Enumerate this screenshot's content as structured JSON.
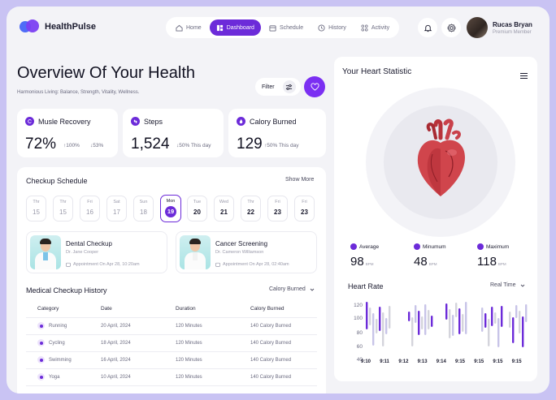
{
  "header": {
    "brand": "HealthPulse",
    "nav": [
      {
        "label": "Home",
        "icon": "home-icon",
        "active": false
      },
      {
        "label": "Dashboard",
        "icon": "grid-icon",
        "active": true
      },
      {
        "label": "Schedule",
        "icon": "calendar-icon",
        "active": false
      },
      {
        "label": "History",
        "icon": "clock-icon",
        "active": false
      },
      {
        "label": "Activity",
        "icon": "activity-icon",
        "active": false
      }
    ],
    "user": {
      "name": "Rucas Bryan",
      "role": "Premium Member"
    }
  },
  "overview": {
    "title": "Overview Of Your Health",
    "subtitle": "Harmonious Living: Balance, Strength, Vitality, Wellness.",
    "filter_label": "Filter"
  },
  "stats": [
    {
      "label": "Musle Recovery",
      "value": "72%",
      "sub1": "↑100%",
      "sub2": "↓53%"
    },
    {
      "label": "Steps",
      "value": "1,524",
      "sub1": "↓50% This day"
    },
    {
      "label": "Calory Burned",
      "value": "129",
      "sub1": "↑50% This day"
    }
  ],
  "schedule": {
    "title": "Checkup Schedule",
    "show_more": "Show More",
    "days": [
      {
        "dn": "Thr",
        "dd": "15"
      },
      {
        "dn": "Thr",
        "dd": "15"
      },
      {
        "dn": "Fri",
        "dd": "16"
      },
      {
        "dn": "Sat",
        "dd": "17"
      },
      {
        "dn": "Sun",
        "dd": "18"
      },
      {
        "dn": "Mon",
        "dd": "19"
      },
      {
        "dn": "Tue",
        "dd": "20"
      },
      {
        "dn": "Wed",
        "dd": "21"
      },
      {
        "dn": "Thr",
        "dd": "22"
      },
      {
        "dn": "Fri",
        "dd": "23"
      },
      {
        "dn": "Fri",
        "dd": "23"
      }
    ],
    "appointments": [
      {
        "name": "Dental Checkup",
        "doctor": "Dr. Jane Cooper",
        "when": "Appointment On Apr 28, 10:20am"
      },
      {
        "name": "Cancer Screening",
        "doctor": "Dr. Cameron Williamson",
        "when": "Appointment On Apr 28, 02:40am"
      }
    ]
  },
  "history": {
    "title": "Medical Checkup History",
    "dropdown": "Calory Burned",
    "columns": [
      "Category",
      "Date",
      "Duration",
      "Calory Burned"
    ],
    "rows": [
      [
        "Running",
        "20 April, 2024",
        "120 Minutes",
        "140 Calory Burned"
      ],
      [
        "Cycling",
        "18 April, 2024",
        "120 Minutes",
        "140 Calory Burned"
      ],
      [
        "Swimming",
        "16 April, 2024",
        "120 Minutes",
        "140 Calory Burned"
      ],
      [
        "Yoga",
        "10 April, 2024",
        "120 Minutes",
        "140 Calory Burned"
      ]
    ]
  },
  "heart": {
    "title": "Your Heart Statistic",
    "metrics": [
      {
        "label": "Average",
        "value": "98",
        "unit": "BPM"
      },
      {
        "label": "Minumum",
        "value": "48",
        "unit": "BPM"
      },
      {
        "label": "Maximum",
        "value": "118",
        "unit": "BPM"
      }
    ],
    "rate_title": "Heart Rate",
    "rate_dropdown": "Real Time",
    "y_ticks": [
      "120",
      "100",
      "80",
      "60",
      "40"
    ],
    "x_ticks": [
      "9:10",
      "9:11",
      "9:12",
      "9:13",
      "9:14",
      "9:15",
      "9:15",
      "9:15",
      "9:15"
    ]
  },
  "colors": {
    "accent": "#6c2bd9",
    "accent_light": "#c8c4e8",
    "bar_gray": "#d4d4dc"
  }
}
